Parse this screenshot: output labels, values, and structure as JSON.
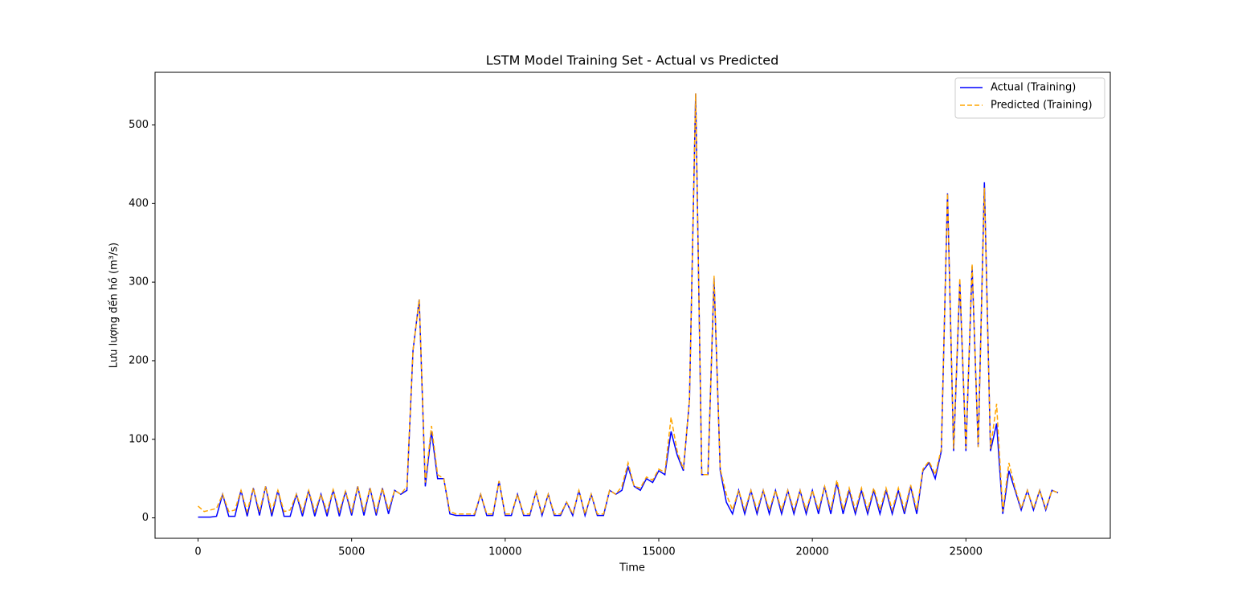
{
  "chart_data": {
    "type": "line",
    "title": "LSTM Model Training Set - Actual vs Predicted",
    "x_label": "Time",
    "y_label": "Lưu lượng đến hồ (m³/s)",
    "x": [
      0,
      200,
      400,
      600,
      800,
      1000,
      1200,
      1400,
      1600,
      1800,
      2000,
      2200,
      2400,
      2600,
      2800,
      3000,
      3200,
      3400,
      3600,
      3800,
      4000,
      4200,
      4400,
      4600,
      4800,
      5000,
      5200,
      5400,
      5600,
      5800,
      6000,
      6200,
      6400,
      6600,
      6800,
      7000,
      7200,
      7400,
      7600,
      7800,
      8000,
      8200,
      8400,
      8600,
      8800,
      9000,
      9200,
      9400,
      9600,
      9800,
      10000,
      10200,
      10400,
      10600,
      10800,
      11000,
      11200,
      11400,
      11600,
      11800,
      12000,
      12200,
      12400,
      12600,
      12800,
      13000,
      13200,
      13400,
      13600,
      13800,
      14000,
      14200,
      14400,
      14600,
      14800,
      15000,
      15200,
      15400,
      15600,
      15800,
      16000,
      16200,
      16400,
      16600,
      16800,
      17000,
      17200,
      17400,
      17600,
      17800,
      18000,
      18200,
      18400,
      18600,
      18800,
      19000,
      19200,
      19400,
      19600,
      19800,
      20000,
      20200,
      20400,
      20600,
      20800,
      21000,
      21200,
      21400,
      21600,
      21800,
      22000,
      22200,
      22400,
      22600,
      22800,
      23000,
      23200,
      23400,
      23600,
      23800,
      24000,
      24200,
      24400,
      24600,
      24800,
      25000,
      25200,
      25400,
      25600,
      25800,
      26000,
      26200,
      26400,
      26600,
      26800,
      27000,
      27200,
      27400,
      27600,
      27800,
      28000
    ],
    "series": [
      {
        "name": "Actual (Training)",
        "color": "#0000ff",
        "linestyle": "solid",
        "values": [
          1,
          1,
          1,
          2,
          30,
          2,
          2,
          35,
          2,
          38,
          3,
          40,
          2,
          35,
          2,
          2,
          30,
          2,
          35,
          2,
          30,
          2,
          36,
          2,
          34,
          3,
          40,
          3,
          38,
          3,
          38,
          5,
          35,
          30,
          35,
          213,
          278,
          40,
          110,
          50,
          50,
          5,
          3,
          3,
          3,
          3,
          30,
          3,
          3,
          47,
          3,
          3,
          30,
          3,
          3,
          33,
          3,
          30,
          3,
          3,
          20,
          3,
          35,
          3,
          30,
          3,
          3,
          35,
          30,
          35,
          65,
          40,
          35,
          50,
          45,
          60,
          55,
          110,
          80,
          60,
          150,
          540,
          55,
          55,
          305,
          60,
          20,
          5,
          35,
          5,
          35,
          5,
          35,
          5,
          35,
          5,
          35,
          5,
          35,
          5,
          35,
          5,
          40,
          5,
          45,
          5,
          35,
          5,
          35,
          5,
          35,
          5,
          35,
          5,
          35,
          5,
          40,
          5,
          60,
          70,
          50,
          85,
          413,
          85,
          300,
          85,
          320,
          90,
          427,
          85,
          120,
          5,
          60,
          35,
          10,
          35,
          10,
          35,
          10,
          35,
          32
        ]
      },
      {
        "name": "Predicted (Training)",
        "color": "#ffa500",
        "linestyle": "dashed",
        "values": [
          15,
          8,
          10,
          12,
          30,
          8,
          10,
          35,
          8,
          38,
          8,
          40,
          8,
          35,
          8,
          10,
          30,
          8,
          35,
          8,
          30,
          8,
          36,
          8,
          34,
          8,
          40,
          8,
          38,
          8,
          38,
          10,
          35,
          30,
          40,
          213,
          278,
          45,
          117,
          55,
          50,
          8,
          5,
          5,
          5,
          5,
          30,
          5,
          5,
          47,
          5,
          5,
          30,
          5,
          5,
          33,
          5,
          30,
          5,
          5,
          20,
          5,
          35,
          5,
          30,
          5,
          5,
          35,
          30,
          40,
          70,
          40,
          38,
          52,
          48,
          62,
          58,
          128,
          85,
          62,
          150,
          540,
          55,
          55,
          308,
          62,
          30,
          10,
          35,
          10,
          35,
          10,
          35,
          10,
          35,
          10,
          35,
          10,
          35,
          10,
          35,
          10,
          40,
          10,
          48,
          10,
          38,
          10,
          38,
          10,
          38,
          10,
          38,
          10,
          38,
          10,
          42,
          10,
          62,
          72,
          55,
          88,
          413,
          88,
          305,
          88,
          323,
          90,
          420,
          88,
          145,
          8,
          70,
          38,
          12,
          35,
          12,
          35,
          12,
          35,
          32
        ]
      }
    ],
    "xlim": [
      -1400,
      29700
    ],
    "xticks": [
      0,
      5000,
      10000,
      15000,
      20000,
      25000
    ],
    "ylim": [
      -26,
      567
    ],
    "yticks": [
      0,
      100,
      200,
      300,
      400,
      500
    ],
    "legend": "upper right"
  }
}
